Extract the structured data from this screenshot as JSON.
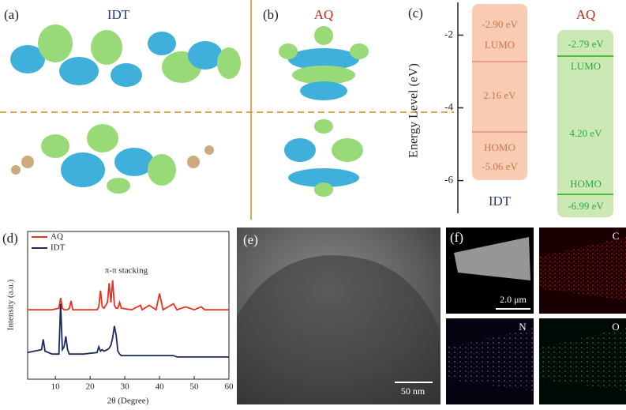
{
  "panel_a": {
    "label": "(a)",
    "title": "IDT"
  },
  "panel_b": {
    "label": "(b)",
    "title": "AQ"
  },
  "panel_c": {
    "label": "(c)",
    "y_label": "Energy Level (eV)",
    "ylim": [
      -1.1,
      -6.9
    ],
    "yticks": [
      -2,
      -4,
      -6
    ],
    "columns": [
      {
        "name": "IDT",
        "lumo_label": "LUMO",
        "lumo_energy": "-2.90 eV",
        "gap": "2.16 eV",
        "homo_label": "HOMO",
        "homo_energy": "-5.06 eV"
      },
      {
        "name": "AQ",
        "lumo_label": "LUMO",
        "lumo_energy": "-2.79 eV",
        "gap": "4.20 eV",
        "homo_label": "HOMO",
        "homo_energy": "-6.99 eV"
      }
    ]
  },
  "chart_data": {
    "type": "line",
    "label": "(d)",
    "x_label": "2θ (Degree)",
    "y_label": "Intensity (a.u.)",
    "annotation": "π-π stacking",
    "x": [
      2,
      6,
      6.5,
      7,
      9,
      11,
      11.5,
      12,
      12.5,
      13,
      13.5,
      14,
      14.5,
      15,
      18,
      22,
      22.5,
      23,
      23.5,
      24,
      25,
      25.5,
      26,
      26.5,
      27,
      27.5,
      28,
      28.5,
      29,
      32,
      34.5,
      35,
      37,
      39,
      40,
      41,
      44,
      45,
      47.5,
      50,
      52,
      53,
      56,
      60
    ],
    "series": [
      {
        "name": "AQ",
        "color": "#e8321e",
        "values": [
          47,
          47,
          47,
          47,
          47,
          48,
          55,
          48,
          47,
          47,
          47,
          48,
          53,
          47,
          47,
          47,
          49,
          60,
          49,
          48,
          52,
          65,
          52,
          67,
          50,
          48,
          48,
          52,
          48,
          47,
          50,
          47,
          50,
          47,
          58,
          47,
          51,
          47,
          49,
          47,
          49,
          47,
          47,
          47
        ]
      },
      {
        "name": "IDT",
        "color": "#1a2a5e",
        "values": [
          18,
          20,
          27,
          19,
          17,
          17,
          51,
          20,
          22,
          29,
          20,
          17,
          17,
          17,
          17,
          18,
          22,
          19,
          20,
          19,
          20,
          21,
          23,
          28,
          36,
          30,
          19,
          17,
          16,
          16,
          16,
          16,
          16,
          16,
          16,
          16,
          16,
          15,
          15,
          15,
          15,
          15,
          15,
          15
        ]
      }
    ],
    "xlim": [
      2,
      60
    ],
    "xticks": [
      10,
      20,
      30,
      40,
      50,
      60
    ],
    "ylim": [
      0,
      100
    ],
    "legend": "upper-left"
  },
  "panel_e": {
    "label": "(e)",
    "scale_bar": "50 nm"
  },
  "panel_f": {
    "label": "(f)",
    "scale_bar": "2.0 μm",
    "maps": [
      "C",
      "N",
      "O"
    ]
  }
}
